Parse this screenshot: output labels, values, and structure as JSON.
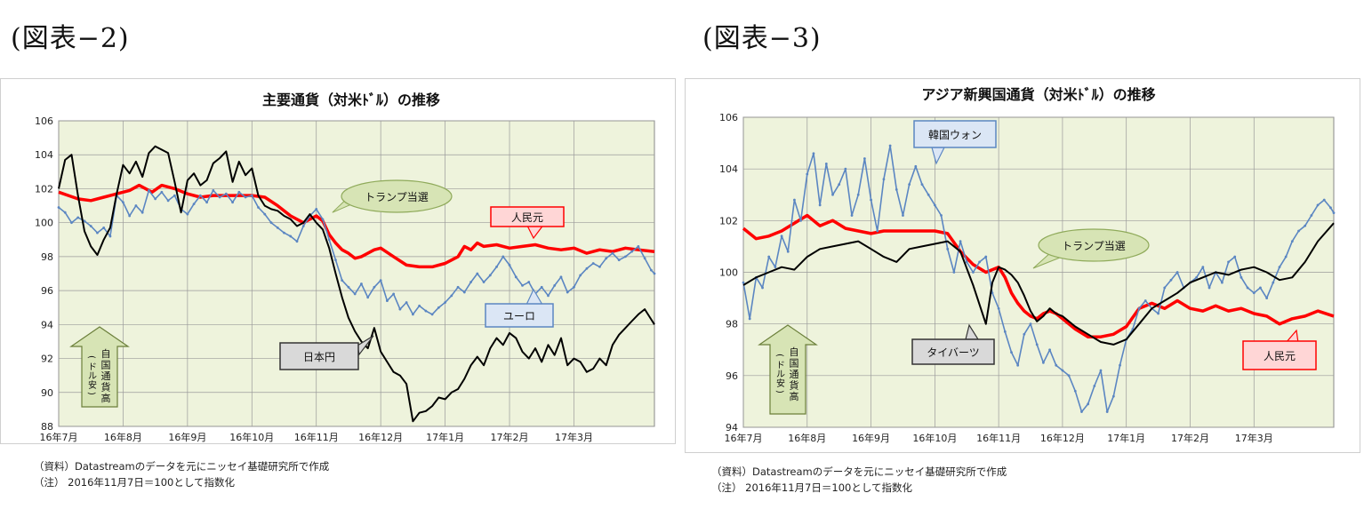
{
  "figures": [
    {
      "label": "(図表−2)",
      "notes": [
        "（資料）Datastreamのデータを元にニッセイ基礎研究所で作成",
        "（注）  2016年11月7日＝100として指数化"
      ]
    },
    {
      "label": "(図表−3)",
      "notes": [
        "（資料）Datastreamのデータを元にニッセイ基礎研究所で作成",
        "（注）  2016年11月7日＝100として指数化"
      ]
    }
  ],
  "chart_data": [
    {
      "type": "line",
      "title": "主要通貨（対米ﾄﾞﾙ）の推移",
      "xlabel": "",
      "ylabel": "",
      "x_ticks": [
        "16年7月",
        "16年8月",
        "16年9月",
        "16年10月",
        "16年11月",
        "16年12月",
        "17年1月",
        "17年2月",
        "17年3月"
      ],
      "x_range": [
        0,
        9.25
      ],
      "y_ticks": [
        88,
        90,
        92,
        94,
        96,
        98,
        100,
        102,
        104,
        106
      ],
      "ylim": [
        88,
        106
      ],
      "grid": true,
      "series": [
        {
          "name": "人民元",
          "color": "#ff0000",
          "width": 3.5,
          "x": [
            0,
            0.15,
            0.3,
            0.5,
            0.7,
            0.9,
            1.1,
            1.25,
            1.45,
            1.6,
            1.8,
            2.0,
            2.2,
            2.4,
            2.6,
            2.8,
            3.0,
            3.2,
            3.4,
            3.6,
            3.8,
            4.0,
            4.1,
            4.2,
            4.3,
            4.4,
            4.5,
            4.6,
            4.7,
            4.8,
            4.9,
            5.0,
            5.2,
            5.4,
            5.6,
            5.8,
            6.0,
            6.2,
            6.3,
            6.4,
            6.5,
            6.6,
            6.8,
            7.0,
            7.2,
            7.4,
            7.6,
            7.8,
            8.0,
            8.2,
            8.4,
            8.6,
            8.8,
            9.0,
            9.25
          ],
          "y": [
            101.8,
            101.6,
            101.4,
            101.3,
            101.5,
            101.7,
            101.9,
            102.2,
            101.8,
            102.2,
            102.0,
            101.7,
            101.5,
            101.6,
            101.6,
            101.6,
            101.6,
            101.5,
            101.0,
            100.4,
            100.0,
            100.4,
            100.1,
            99.3,
            98.8,
            98.4,
            98.2,
            97.9,
            98.0,
            98.2,
            98.4,
            98.5,
            98.0,
            97.5,
            97.4,
            97.4,
            97.6,
            98.0,
            98.6,
            98.4,
            98.8,
            98.6,
            98.7,
            98.5,
            98.6,
            98.7,
            98.5,
            98.4,
            98.5,
            98.2,
            98.4,
            98.3,
            98.5,
            98.4,
            98.3
          ]
        },
        {
          "name": "ユーロ",
          "color": "#5b86c2",
          "width": 1.6,
          "x": [
            0,
            0.1,
            0.2,
            0.3,
            0.4,
            0.5,
            0.6,
            0.7,
            0.8,
            0.9,
            1.0,
            1.1,
            1.2,
            1.3,
            1.4,
            1.5,
            1.6,
            1.7,
            1.8,
            1.9,
            2.0,
            2.1,
            2.2,
            2.3,
            2.4,
            2.5,
            2.6,
            2.7,
            2.8,
            2.9,
            3.0,
            3.1,
            3.2,
            3.3,
            3.4,
            3.5,
            3.6,
            3.7,
            3.8,
            3.9,
            4.0,
            4.1,
            4.2,
            4.3,
            4.4,
            4.5,
            4.6,
            4.7,
            4.8,
            4.9,
            5.0,
            5.1,
            5.2,
            5.3,
            5.4,
            5.5,
            5.6,
            5.7,
            5.8,
            5.9,
            6.0,
            6.1,
            6.2,
            6.3,
            6.4,
            6.5,
            6.6,
            6.7,
            6.8,
            6.9,
            7.0,
            7.1,
            7.2,
            7.3,
            7.4,
            7.5,
            7.6,
            7.7,
            7.8,
            7.9,
            8.0,
            8.1,
            8.2,
            8.3,
            8.4,
            8.5,
            8.6,
            8.7,
            8.8,
            8.9,
            9.0,
            9.1,
            9.2,
            9.25
          ],
          "y": [
            100.9,
            100.6,
            100.0,
            100.3,
            100.1,
            99.8,
            99.4,
            99.7,
            99.2,
            101.6,
            101.2,
            100.4,
            101.0,
            100.6,
            101.9,
            101.4,
            101.8,
            101.3,
            101.6,
            100.8,
            100.5,
            101.1,
            101.6,
            101.2,
            101.9,
            101.5,
            101.7,
            101.2,
            101.8,
            101.5,
            101.6,
            100.9,
            100.5,
            100.0,
            99.7,
            99.4,
            99.2,
            98.9,
            99.8,
            100.4,
            100.8,
            100.2,
            99.0,
            97.8,
            96.6,
            96.2,
            95.8,
            96.4,
            95.6,
            96.2,
            96.6,
            95.4,
            95.8,
            94.9,
            95.3,
            94.6,
            95.1,
            94.8,
            94.6,
            95.0,
            95.3,
            95.7,
            96.2,
            95.9,
            96.5,
            97.0,
            96.5,
            96.9,
            97.4,
            98.0,
            97.5,
            96.8,
            96.3,
            96.5,
            95.8,
            96.2,
            95.7,
            96.3,
            96.8,
            95.9,
            96.2,
            96.9,
            97.3,
            97.6,
            97.4,
            97.9,
            98.2,
            97.8,
            98.0,
            98.3,
            98.6,
            97.9,
            97.2,
            97.0
          ]
        },
        {
          "name": "日本円",
          "color": "#000000",
          "width": 2.0,
          "x": [
            0,
            0.1,
            0.2,
            0.3,
            0.4,
            0.5,
            0.6,
            0.7,
            0.8,
            0.9,
            1.0,
            1.1,
            1.2,
            1.3,
            1.4,
            1.5,
            1.6,
            1.7,
            1.8,
            1.9,
            2.0,
            2.1,
            2.2,
            2.3,
            2.4,
            2.5,
            2.6,
            2.7,
            2.8,
            2.9,
            3.0,
            3.1,
            3.2,
            3.3,
            3.4,
            3.5,
            3.6,
            3.7,
            3.8,
            3.9,
            4.0,
            4.1,
            4.2,
            4.3,
            4.4,
            4.5,
            4.6,
            4.7,
            4.8,
            4.9,
            5.0,
            5.1,
            5.2,
            5.3,
            5.4,
            5.5,
            5.6,
            5.7,
            5.8,
            5.9,
            6.0,
            6.1,
            6.2,
            6.3,
            6.4,
            6.5,
            6.6,
            6.7,
            6.8,
            6.9,
            7.0,
            7.1,
            7.2,
            7.3,
            7.4,
            7.5,
            7.6,
            7.7,
            7.8,
            7.9,
            8.0,
            8.1,
            8.2,
            8.3,
            8.4,
            8.5,
            8.6,
            8.7,
            8.8,
            8.9,
            9.0,
            9.1,
            9.2,
            9.25
          ],
          "y": [
            102.0,
            103.7,
            104.0,
            101.6,
            99.5,
            98.6,
            98.1,
            99.0,
            99.7,
            101.7,
            103.4,
            102.9,
            103.6,
            102.7,
            104.1,
            104.5,
            104.3,
            104.1,
            102.4,
            100.6,
            102.5,
            102.9,
            102.2,
            102.5,
            103.5,
            103.8,
            104.2,
            102.4,
            103.6,
            102.8,
            103.2,
            101.6,
            101.0,
            100.8,
            100.7,
            100.4,
            100.2,
            99.8,
            100.0,
            100.5,
            100.0,
            99.6,
            98.5,
            97.0,
            95.6,
            94.4,
            93.6,
            93.0,
            92.6,
            93.8,
            92.4,
            91.8,
            91.2,
            91.0,
            90.5,
            88.3,
            88.8,
            88.9,
            89.2,
            89.7,
            89.6,
            90.0,
            90.2,
            90.8,
            91.6,
            92.1,
            91.6,
            92.6,
            93.2,
            92.8,
            93.5,
            93.2,
            92.4,
            92.0,
            92.6,
            91.8,
            92.8,
            92.2,
            93.2,
            91.6,
            92.0,
            91.8,
            91.2,
            91.4,
            92.0,
            91.6,
            92.8,
            93.4,
            93.8,
            94.2,
            94.6,
            94.9,
            94.3,
            94.0
          ]
        }
      ],
      "annotations": {
        "trump": "トランプ当選",
        "cny": "人民元",
        "eur": "ユーロ",
        "jpy": "日本円",
        "arrow": "自国通貨高（ドル安）"
      },
      "colors": {
        "plot_bg": "#eef3dc",
        "callout_red_fill": "#ffd6d6",
        "callout_blue_fill": "#dbe6f5",
        "callout_gray_fill": "#d9d9d9",
        "callout_green_fill": "#d7e4b5",
        "arrow_fill": "#d7e4b5"
      }
    },
    {
      "type": "line",
      "title": "アジア新興国通貨（対米ﾄﾞﾙ）の推移",
      "xlabel": "",
      "ylabel": "",
      "x_ticks": [
        "16年7月",
        "16年8月",
        "16年9月",
        "16年10月",
        "16年11月",
        "16年12月",
        "17年1月",
        "17年2月",
        "17年3月"
      ],
      "x_range": [
        0,
        9.25
      ],
      "y_ticks": [
        94,
        96,
        98,
        100,
        102,
        104,
        106
      ],
      "ylim": [
        94,
        106
      ],
      "grid": true,
      "series": [
        {
          "name": "人民元",
          "color": "#ff0000",
          "width": 3.5,
          "x": [
            0,
            0.2,
            0.4,
            0.6,
            0.8,
            1.0,
            1.2,
            1.4,
            1.6,
            1.8,
            2.0,
            2.2,
            2.4,
            2.6,
            2.8,
            3.0,
            3.2,
            3.4,
            3.6,
            3.8,
            4.0,
            4.1,
            4.2,
            4.3,
            4.4,
            4.5,
            4.6,
            4.7,
            4.8,
            4.9,
            5.0,
            5.2,
            5.4,
            5.6,
            5.8,
            6.0,
            6.2,
            6.4,
            6.6,
            6.8,
            7.0,
            7.2,
            7.4,
            7.6,
            7.8,
            8.0,
            8.2,
            8.4,
            8.6,
            8.8,
            9.0,
            9.25
          ],
          "y": [
            101.7,
            101.3,
            101.4,
            101.6,
            101.9,
            102.2,
            101.8,
            102.0,
            101.7,
            101.6,
            101.5,
            101.6,
            101.6,
            101.6,
            101.6,
            101.6,
            101.5,
            100.8,
            100.3,
            100.0,
            100.2,
            99.8,
            99.2,
            98.8,
            98.5,
            98.3,
            98.2,
            98.4,
            98.5,
            98.4,
            98.2,
            97.8,
            97.5,
            97.5,
            97.6,
            97.9,
            98.6,
            98.8,
            98.6,
            98.9,
            98.6,
            98.5,
            98.7,
            98.5,
            98.6,
            98.4,
            98.3,
            98.0,
            98.2,
            98.3,
            98.5,
            98.3
          ]
        },
        {
          "name": "韓国ウォン",
          "color": "#5b86c2",
          "width": 1.6,
          "x": [
            0,
            0.1,
            0.2,
            0.3,
            0.4,
            0.5,
            0.6,
            0.7,
            0.8,
            0.9,
            1.0,
            1.1,
            1.2,
            1.3,
            1.4,
            1.5,
            1.6,
            1.7,
            1.8,
            1.9,
            2.0,
            2.1,
            2.2,
            2.3,
            2.4,
            2.5,
            2.6,
            2.7,
            2.8,
            2.9,
            3.0,
            3.1,
            3.2,
            3.3,
            3.4,
            3.5,
            3.6,
            3.7,
            3.8,
            3.9,
            4.0,
            4.1,
            4.2,
            4.3,
            4.4,
            4.5,
            4.6,
            4.7,
            4.8,
            4.9,
            5.0,
            5.1,
            5.2,
            5.3,
            5.4,
            5.5,
            5.6,
            5.7,
            5.8,
            5.9,
            6.0,
            6.1,
            6.2,
            6.3,
            6.4,
            6.5,
            6.6,
            6.7,
            6.8,
            6.9,
            7.0,
            7.1,
            7.2,
            7.3,
            7.4,
            7.5,
            7.6,
            7.7,
            7.8,
            7.9,
            8.0,
            8.1,
            8.2,
            8.3,
            8.4,
            8.5,
            8.6,
            8.7,
            8.8,
            8.9,
            9.0,
            9.1,
            9.2,
            9.25
          ],
          "y": [
            99.6,
            98.2,
            99.8,
            99.4,
            100.6,
            100.2,
            101.4,
            100.8,
            102.8,
            102.0,
            103.8,
            104.6,
            102.6,
            104.2,
            103.0,
            103.4,
            104.0,
            102.2,
            103.0,
            104.4,
            102.8,
            101.6,
            103.6,
            104.9,
            103.2,
            102.2,
            103.4,
            104.1,
            103.4,
            103.0,
            102.6,
            102.2,
            100.9,
            100.0,
            101.2,
            100.4,
            100.0,
            100.4,
            100.6,
            99.2,
            98.6,
            97.7,
            96.9,
            96.4,
            97.6,
            98.0,
            97.2,
            96.5,
            97.0,
            96.4,
            96.2,
            96.0,
            95.4,
            94.6,
            94.9,
            95.6,
            96.2,
            94.6,
            95.2,
            96.4,
            97.4,
            97.8,
            98.6,
            98.9,
            98.6,
            98.4,
            99.4,
            99.7,
            100.0,
            99.4,
            99.6,
            99.8,
            100.2,
            99.4,
            100.0,
            99.6,
            100.4,
            100.6,
            99.8,
            99.4,
            99.2,
            99.4,
            99.0,
            99.6,
            100.2,
            100.6,
            101.2,
            101.6,
            101.8,
            102.2,
            102.6,
            102.8,
            102.5,
            102.3
          ]
        },
        {
          "name": "タイバーツ",
          "color": "#000000",
          "width": 2.0,
          "x": [
            0,
            0.2,
            0.4,
            0.6,
            0.8,
            1.0,
            1.2,
            1.4,
            1.6,
            1.8,
            2.0,
            2.2,
            2.4,
            2.6,
            2.8,
            3.0,
            3.2,
            3.4,
            3.6,
            3.8,
            3.9,
            4.0,
            4.1,
            4.2,
            4.3,
            4.4,
            4.5,
            4.6,
            4.7,
            4.8,
            4.9,
            5.0,
            5.2,
            5.4,
            5.6,
            5.8,
            6.0,
            6.2,
            6.4,
            6.6,
            6.8,
            7.0,
            7.2,
            7.4,
            7.6,
            7.8,
            8.0,
            8.2,
            8.4,
            8.6,
            8.8,
            9.0,
            9.25
          ],
          "y": [
            99.5,
            99.8,
            100.0,
            100.2,
            100.1,
            100.6,
            100.9,
            101.0,
            101.1,
            101.2,
            100.9,
            100.6,
            100.4,
            100.9,
            101.0,
            101.1,
            101.2,
            100.8,
            99.5,
            98.0,
            99.6,
            100.2,
            100.1,
            99.9,
            99.6,
            99.1,
            98.5,
            98.1,
            98.3,
            98.6,
            98.4,
            98.3,
            97.9,
            97.6,
            97.3,
            97.2,
            97.4,
            98.0,
            98.6,
            98.9,
            99.2,
            99.6,
            99.8,
            100.0,
            99.9,
            100.1,
            100.2,
            100.0,
            99.7,
            99.8,
            100.4,
            101.2,
            101.9
          ]
        }
      ],
      "annotations": {
        "krw": "韓国ウォン",
        "trump": "トランプ当選",
        "thb": "タイバーツ",
        "cny": "人民元",
        "arrow": "自国通貨高（ドル安）"
      },
      "colors": {
        "plot_bg": "#eef3dc",
        "callout_red_fill": "#ffd6d6",
        "callout_blue_fill": "#dbe6f5",
        "callout_gray_fill": "#d9d9d9",
        "callout_green_fill": "#d7e4b5",
        "arrow_fill": "#d7e4b5"
      }
    }
  ]
}
